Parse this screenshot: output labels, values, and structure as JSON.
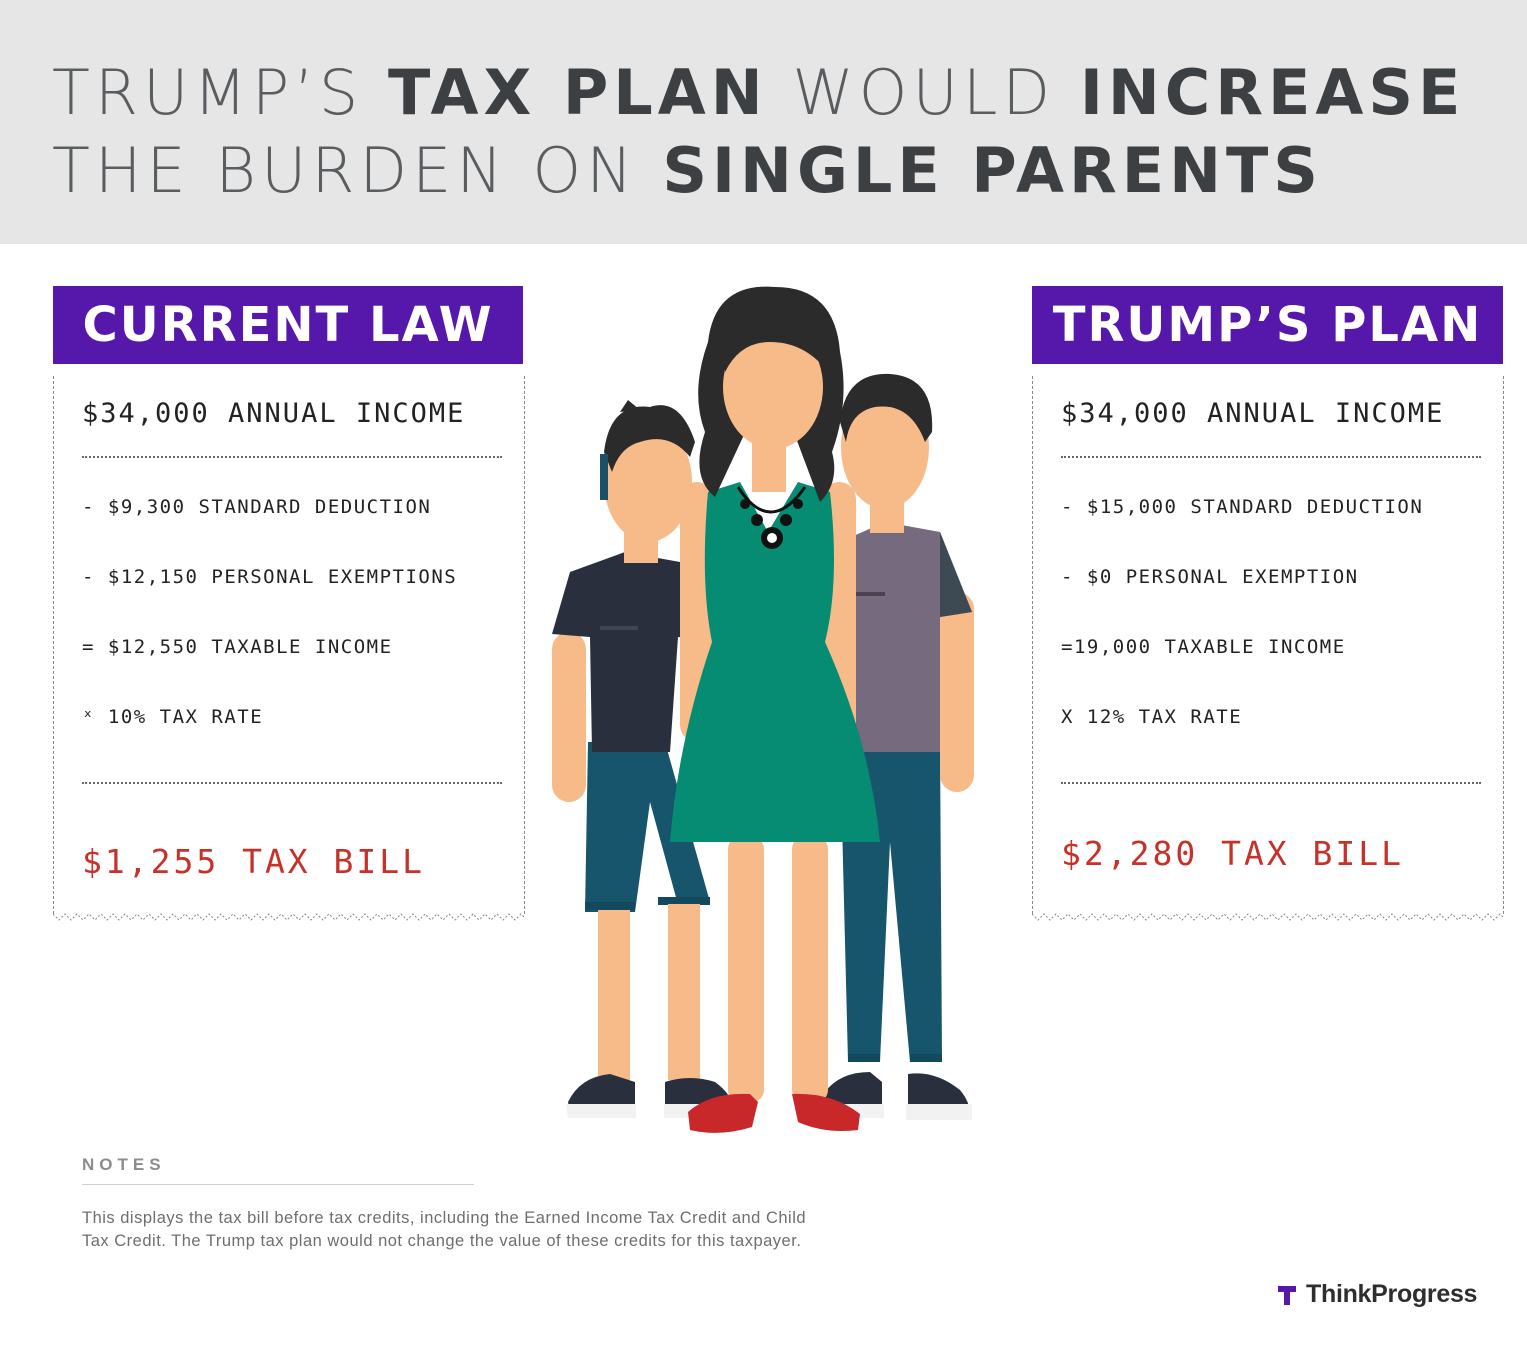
{
  "title": {
    "line1": [
      {
        "text": "TRUMP’S ",
        "style": "thin"
      },
      {
        "text": "TAX PLAN",
        "style": "bold"
      },
      {
        "text": " WOULD ",
        "style": "thin"
      },
      {
        "text": "INCREASE",
        "style": "bold"
      }
    ],
    "line2": [
      {
        "text": "THE BURDEN ON ",
        "style": "thin"
      },
      {
        "text": "SINGLE PARENTS",
        "style": "bold"
      }
    ]
  },
  "current_law": {
    "label": "CURRENT LAW",
    "income": "$34,000 ANNUAL INCOME",
    "lines": [
      "- $9,300  STANDARD DEDUCTION",
      "- $12,150 PERSONAL EXEMPTIONS",
      "= $12,550 TAXABLE INCOME",
      "ˣ 10% TAX RATE"
    ],
    "bill": "$1,255 TAX BILL"
  },
  "trumps_plan": {
    "label": "TRUMP’S PLAN",
    "income": "$34,000 ANNUAL INCOME",
    "lines": [
      "- $15,000 STANDARD DEDUCTION",
      "- $0 PERSONAL EXEMPTION",
      "=19,000 TAXABLE INCOME",
      "X 12% TAX RATE"
    ],
    "bill": "$2,280 TAX BILL"
  },
  "notes": {
    "heading": "NOTES",
    "text": "This displays the tax bill before tax credits, including the Earned Income Tax Credit and Child Tax Credit. The Trump tax plan would not change the value of these credits for this taxpayer."
  },
  "logo": {
    "text": "ThinkProgress",
    "icon": "thinkprogress-t-logo-icon"
  },
  "colors": {
    "header_bg": "#e6e6e6",
    "panel_purple": "#5618ab",
    "bill_red": "#c8302a",
    "dress_green": "#068c72"
  }
}
